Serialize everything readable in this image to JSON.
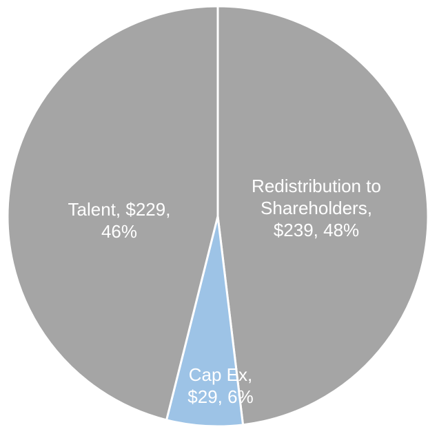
{
  "chart_data": {
    "type": "pie",
    "values": [
      239,
      29,
      229
    ],
    "value_labels": [
      "Redistribution to Shareholders, $239, 48%",
      "Cap Ex, $29, 6%",
      "Talent, $229, 46%"
    ],
    "colors": [
      "#a5a5a5",
      "#9dc3e6",
      "#a5a5a5"
    ]
  }
}
